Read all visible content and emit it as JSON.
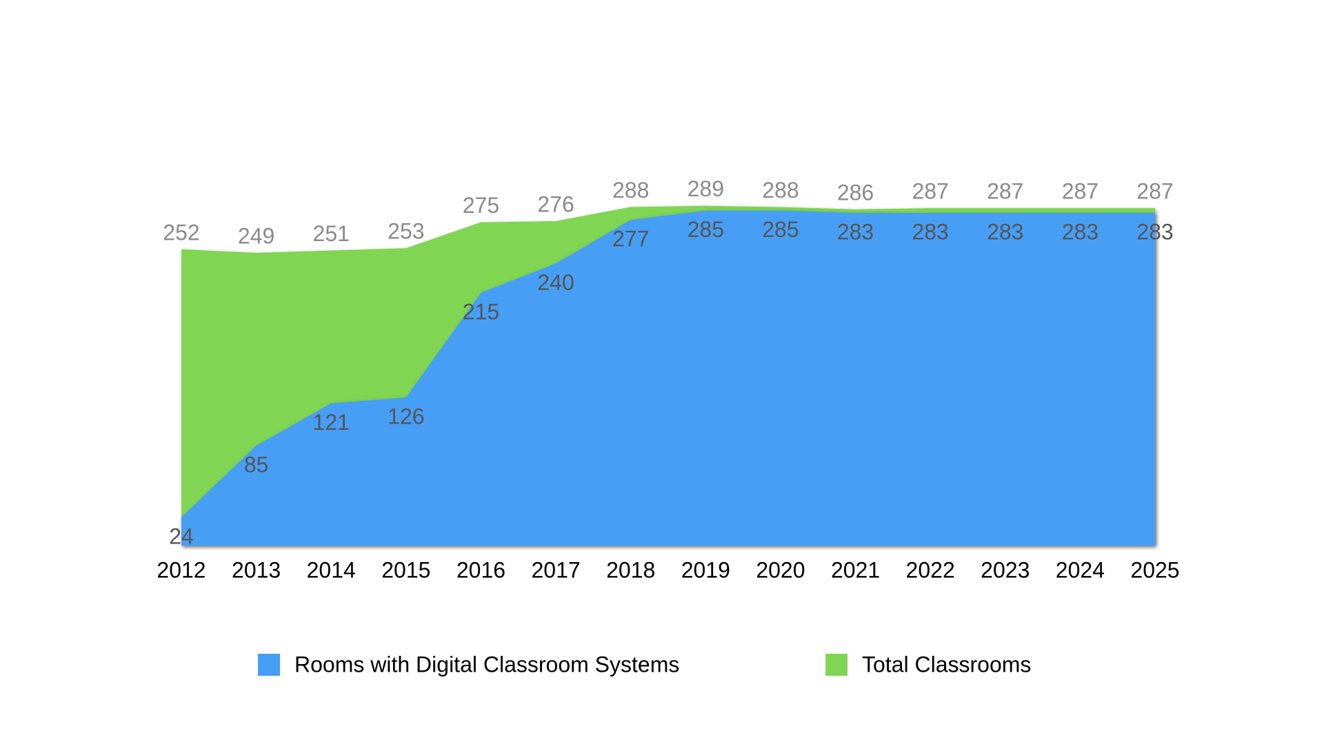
{
  "chart_data": {
    "type": "area",
    "x": [
      2012,
      2013,
      2014,
      2015,
      2016,
      2017,
      2018,
      2019,
      2020,
      2021,
      2022,
      2023,
      2024,
      2025
    ],
    "series": [
      {
        "name": "Rooms with Digital Classroom Systems",
        "color": "#479ef5",
        "values": [
          24,
          85,
          121,
          126,
          215,
          240,
          277,
          285,
          285,
          283,
          283,
          283,
          283,
          283
        ]
      },
      {
        "name": "Total Classrooms",
        "color": "#80d553",
        "values": [
          252,
          249,
          251,
          253,
          275,
          276,
          288,
          289,
          288,
          286,
          287,
          287,
          287,
          287
        ]
      }
    ],
    "ylim": [
      0,
      300
    ]
  }
}
